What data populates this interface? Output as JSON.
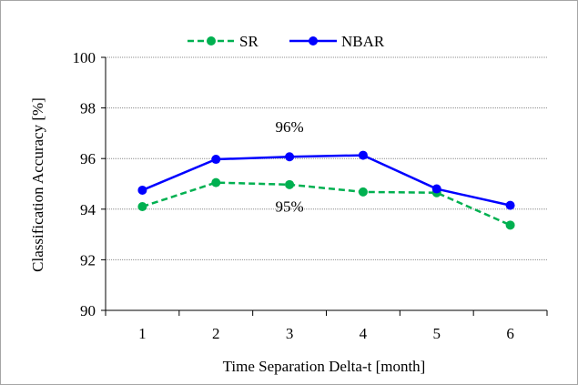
{
  "chart_data": {
    "type": "line",
    "xlabel": "Time Separation Delta-t  [month]",
    "ylabel": "Classification Accuracy  [%]",
    "categories": [
      "1",
      "2",
      "3",
      "4",
      "5",
      "6"
    ],
    "yticks": [
      "90",
      "92",
      "94",
      "96",
      "98",
      "100"
    ],
    "ylim": [
      90,
      100
    ],
    "grid": "horizontal",
    "legend_position": "top",
    "series": [
      {
        "name": "SR",
        "values": [
          94.1,
          95.05,
          94.97,
          94.68,
          94.65,
          93.37
        ],
        "color": "#00b050",
        "dashed": true
      },
      {
        "name": "NBAR",
        "values": [
          94.75,
          95.97,
          96.07,
          96.13,
          94.8,
          94.15
        ],
        "color": "#0000ff",
        "dashed": false
      }
    ],
    "annotations": [
      {
        "text": "96%",
        "x": 3,
        "y": 97.05
      },
      {
        "text": "95%",
        "x": 3,
        "y": 93.9
      }
    ]
  }
}
